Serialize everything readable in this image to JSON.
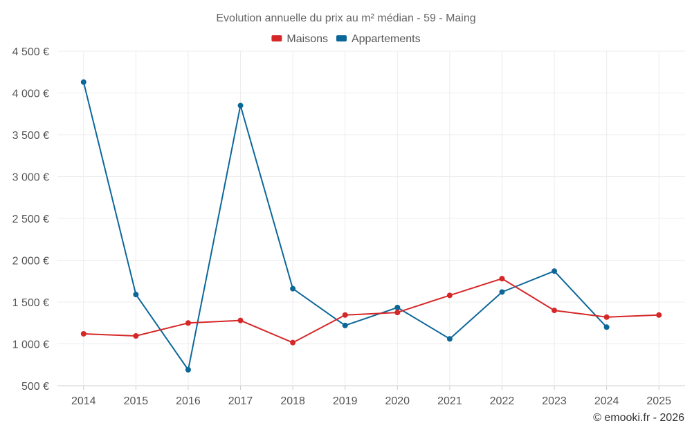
{
  "chart_data": {
    "type": "line",
    "title": "Evolution annuelle du prix au m² médian - 59 - Maing",
    "xlabel": "",
    "ylabel": "",
    "x": [
      "2014",
      "2015",
      "2016",
      "2017",
      "2018",
      "2019",
      "2020",
      "2021",
      "2022",
      "2023",
      "2024",
      "2025"
    ],
    "ylim": [
      500,
      4500
    ],
    "yticks": [
      500,
      1000,
      1500,
      2000,
      2500,
      3000,
      3500,
      4000,
      4500
    ],
    "ytick_labels": [
      "500 €",
      "1 000 €",
      "1 500 €",
      "2 000 €",
      "2 500 €",
      "3 000 €",
      "3 500 €",
      "4 000 €",
      "4 500 €"
    ],
    "grid": true,
    "legend_position": "top-center",
    "series": [
      {
        "name": "Maisons",
        "color": "#d62728",
        "values": [
          1120,
          1095,
          1250,
          1280,
          1015,
          1345,
          1375,
          1580,
          1780,
          1400,
          1320,
          1345
        ]
      },
      {
        "name": "Appartements",
        "color": "#0c6799",
        "values": [
          4130,
          1590,
          690,
          3850,
          1660,
          1220,
          1435,
          1060,
          1620,
          1870,
          1200,
          null
        ]
      }
    ],
    "credit": "© emooki.fr - 2026"
  }
}
